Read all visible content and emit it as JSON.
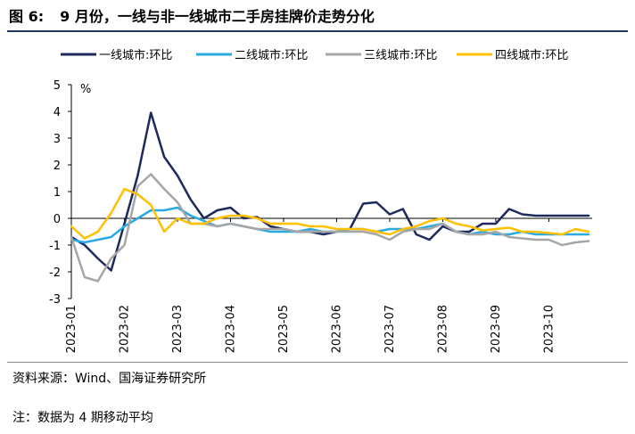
{
  "figure": {
    "number": "图 6:",
    "title": "9 月份，一线与非一线城市二手房挂牌价走势分化"
  },
  "source": "资料来源：Wind、国海证券研究所",
  "note": "注：数据为 4 期移动平均",
  "chart_data": {
    "type": "line",
    "title": "9 月份，一线与非一线城市二手房挂牌价走势分化",
    "ylabel": "%",
    "ylim": [
      -3,
      5
    ],
    "yticks": [
      5,
      4,
      3,
      2,
      1,
      0,
      -1,
      -2,
      -3
    ],
    "x_count": 40,
    "xtick_labels": [
      "2023-01",
      "2023-02",
      "2023-03",
      "2023-04",
      "2023-05",
      "2023-06",
      "2023-07",
      "2023-08",
      "2023-09",
      "2023-10"
    ],
    "xtick_positions": [
      0,
      4,
      8,
      12,
      16,
      20,
      24,
      28,
      32,
      36
    ],
    "legend_position": "top",
    "series": [
      {
        "name": "一线城市:环比",
        "color": "#1f2a5c",
        "values": [
          -0.7,
          -1.0,
          -1.5,
          -1.95,
          -0.2,
          1.6,
          3.95,
          2.3,
          1.6,
          0.7,
          0.0,
          0.3,
          0.4,
          0.0,
          0.05,
          -0.3,
          -0.4,
          -0.5,
          -0.5,
          -0.6,
          -0.5,
          -0.4,
          0.55,
          0.6,
          0.15,
          0.35,
          -0.6,
          -0.8,
          -0.3,
          -0.5,
          -0.5,
          -0.2,
          -0.2,
          0.35,
          0.15,
          0.1,
          0.1,
          0.1,
          0.1,
          0.1
        ]
      },
      {
        "name": "二线城市:环比",
        "color": "#29abe2",
        "values": [
          -0.8,
          -0.9,
          -0.8,
          -0.7,
          -0.3,
          0.0,
          0.3,
          0.3,
          0.4,
          0.1,
          -0.1,
          -0.3,
          -0.2,
          -0.3,
          -0.4,
          -0.5,
          -0.5,
          -0.5,
          -0.4,
          -0.5,
          -0.5,
          -0.4,
          -0.4,
          -0.5,
          -0.4,
          -0.4,
          -0.4,
          -0.3,
          -0.2,
          -0.5,
          -0.6,
          -0.5,
          -0.6,
          -0.6,
          -0.5,
          -0.6,
          -0.6,
          -0.6,
          -0.6,
          -0.6
        ]
      },
      {
        "name": "三线城市:环比",
        "color": "#a6a6a6",
        "values": [
          -0.7,
          -2.2,
          -2.35,
          -1.5,
          -1.0,
          1.2,
          1.65,
          1.1,
          0.6,
          -0.2,
          -0.2,
          -0.3,
          -0.2,
          -0.3,
          -0.4,
          -0.4,
          -0.4,
          -0.5,
          -0.5,
          -0.5,
          -0.5,
          -0.5,
          -0.5,
          -0.6,
          -0.8,
          -0.5,
          -0.4,
          -0.4,
          -0.2,
          -0.5,
          -0.6,
          -0.6,
          -0.5,
          -0.7,
          -0.75,
          -0.8,
          -0.8,
          -1.0,
          -0.9,
          -0.85
        ]
      },
      {
        "name": "四线城市:环比",
        "color": "#ffc000",
        "values": [
          -0.3,
          -0.75,
          -0.5,
          0.2,
          1.1,
          0.9,
          0.5,
          -0.5,
          0.0,
          -0.2,
          -0.2,
          0.0,
          0.1,
          0.1,
          0.0,
          -0.2,
          -0.2,
          -0.2,
          -0.3,
          -0.3,
          -0.4,
          -0.4,
          -0.4,
          -0.5,
          -0.6,
          -0.4,
          -0.3,
          -0.1,
          0.0,
          -0.2,
          -0.3,
          -0.45,
          -0.4,
          -0.35,
          -0.5,
          -0.5,
          -0.55,
          -0.6,
          -0.4,
          -0.5
        ]
      }
    ]
  }
}
